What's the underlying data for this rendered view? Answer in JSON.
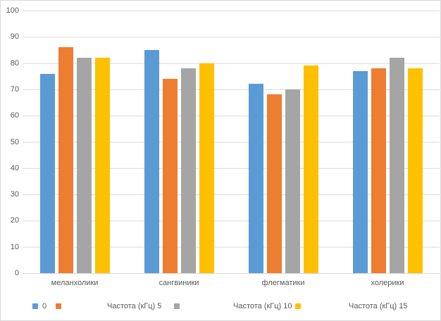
{
  "chart": {
    "background_color": "#FFFFFF",
    "border_color": "#D9D9D9",
    "gridline_color": "#D9D9D9",
    "text_color": "#595959"
  },
  "chart_data": {
    "type": "bar",
    "title": "",
    "xlabel": "",
    "ylabel": "",
    "categories": [
      "меланхолики",
      "сангвиники",
      "флегматики",
      "холерики"
    ],
    "series": [
      {
        "name": "0",
        "color": "#5B9BD5",
        "values": [
          76,
          85,
          72,
          77
        ]
      },
      {
        "name": "Частота (кГц) 5",
        "color": "#ED7D31",
        "values": [
          86,
          74,
          68,
          78
        ]
      },
      {
        "name": "Частота (кГц) 10",
        "color": "#A5A5A5",
        "values": [
          82,
          78,
          70,
          82
        ]
      },
      {
        "name": "Частота (кГц) 15",
        "color": "#FFC000",
        "values": [
          82,
          80,
          79,
          78
        ]
      }
    ],
    "ylim": [
      0,
      100
    ],
    "yticks": [
      100,
      90,
      80,
      70,
      60,
      50,
      40,
      30,
      20,
      10,
      0
    ],
    "grid": true,
    "legend_position": "bottom"
  }
}
